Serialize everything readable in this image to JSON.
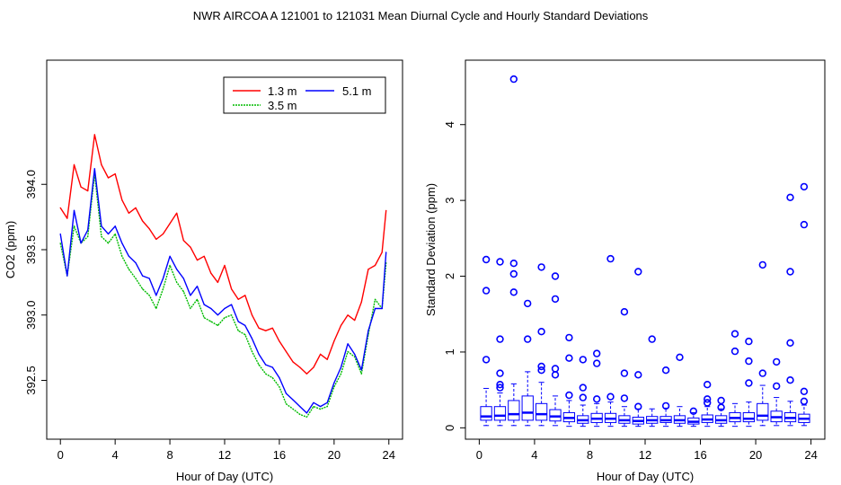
{
  "page_title": "NWR   AIRCOA A   121001 to 121031   Mean Diurnal Cycle and Hourly Standard Deviations",
  "chart_data": [
    {
      "type": "line",
      "xlabel": "Hour of Day (UTC)",
      "ylabel": "CO2 (ppm)",
      "xlim": [
        -1,
        25
      ],
      "ylim": [
        392.05,
        394.95
      ],
      "xticks": [
        "0",
        "4",
        "8",
        "12",
        "16",
        "20",
        "24"
      ],
      "yticks": [
        "392.5",
        "393.0",
        "393.5",
        "394.0"
      ],
      "legend": {
        "placement": "top-right",
        "entries": [
          "1.3 m",
          "5.1 m",
          "3.5 m"
        ]
      },
      "series": [
        {
          "name": "1.3 m",
          "color": "#ff0000",
          "x": [
            0,
            0.5,
            1,
            1.5,
            2,
            2.5,
            3,
            3.5,
            4,
            4.5,
            5,
            5.5,
            6,
            6.5,
            7,
            7.5,
            8,
            8.5,
            9,
            9.5,
            10,
            10.5,
            11,
            11.5,
            12,
            12.5,
            13,
            13.5,
            14,
            14.5,
            15,
            15.5,
            16,
            16.5,
            17,
            17.5,
            18,
            18.5,
            19,
            19.5,
            20,
            20.5,
            21,
            21.5,
            22,
            22.5,
            23,
            23.5,
            23.8
          ],
          "values": [
            393.82,
            393.74,
            394.15,
            393.98,
            393.95,
            394.38,
            394.15,
            394.05,
            394.08,
            393.88,
            393.78,
            393.82,
            393.72,
            393.66,
            393.58,
            393.62,
            393.7,
            393.78,
            393.57,
            393.52,
            393.42,
            393.45,
            393.32,
            393.25,
            393.38,
            393.2,
            393.12,
            393.15,
            393.0,
            392.9,
            392.88,
            392.9,
            392.8,
            392.72,
            392.64,
            392.6,
            392.55,
            392.6,
            392.7,
            392.66,
            392.8,
            392.92,
            393.0,
            392.96,
            393.1,
            393.35,
            393.38,
            393.48,
            393.8
          ]
        },
        {
          "name": "5.1 m",
          "color": "#0000ff",
          "x": [
            0,
            0.5,
            1,
            1.5,
            2,
            2.5,
            3,
            3.5,
            4,
            4.5,
            5,
            5.5,
            6,
            6.5,
            7,
            7.5,
            8,
            8.5,
            9,
            9.5,
            10,
            10.5,
            11,
            11.5,
            12,
            12.5,
            13,
            13.5,
            14,
            14.5,
            15,
            15.5,
            16,
            16.5,
            17,
            17.5,
            18,
            18.5,
            19,
            19.5,
            20,
            20.5,
            21,
            21.5,
            22,
            22.5,
            23,
            23.5,
            23.8
          ],
          "values": [
            393.62,
            393.3,
            393.8,
            393.55,
            393.65,
            394.12,
            393.68,
            393.62,
            393.68,
            393.55,
            393.45,
            393.4,
            393.3,
            393.28,
            393.15,
            393.28,
            393.45,
            393.35,
            393.28,
            393.15,
            393.22,
            393.08,
            393.05,
            393.0,
            393.05,
            393.08,
            392.95,
            392.92,
            392.82,
            392.7,
            392.62,
            392.6,
            392.52,
            392.4,
            392.35,
            392.3,
            392.25,
            392.33,
            392.3,
            392.33,
            392.48,
            392.6,
            392.78,
            392.7,
            392.58,
            392.88,
            393.05,
            393.05,
            393.48
          ]
        },
        {
          "name": "3.5 m",
          "color": "#00bb00",
          "x": [
            0,
            0.5,
            1,
            1.5,
            2,
            2.5,
            3,
            3.5,
            4,
            4.5,
            5,
            5.5,
            6,
            6.5,
            7,
            7.5,
            8,
            8.5,
            9,
            9.5,
            10,
            10.5,
            11,
            11.5,
            12,
            12.5,
            13,
            13.5,
            14,
            14.5,
            15,
            15.5,
            16,
            16.5,
            17,
            17.5,
            18,
            18.5,
            19,
            19.5,
            20,
            20.5,
            21,
            21.5,
            22,
            22.5,
            23,
            23.5,
            23.8
          ],
          "values": [
            393.55,
            393.3,
            393.68,
            393.55,
            393.6,
            394.08,
            393.6,
            393.55,
            393.62,
            393.45,
            393.35,
            393.28,
            393.2,
            393.15,
            393.05,
            393.2,
            393.38,
            393.25,
            393.18,
            393.05,
            393.12,
            392.98,
            392.95,
            392.92,
            392.98,
            393.0,
            392.88,
            392.85,
            392.72,
            392.62,
            392.55,
            392.52,
            392.45,
            392.32,
            392.28,
            392.24,
            392.22,
            392.3,
            392.28,
            392.3,
            392.45,
            392.55,
            392.72,
            392.68,
            392.55,
            392.85,
            393.12,
            393.05,
            393.4
          ]
        }
      ]
    },
    {
      "type": "box",
      "xlabel": "Hour of Day (UTC)",
      "ylabel": "Standard Deviation (ppm)",
      "xlim": [
        -1,
        25
      ],
      "ylim": [
        -0.15,
        4.85
      ],
      "xticks": [
        "0",
        "4",
        "8",
        "12",
        "16",
        "20",
        "24"
      ],
      "yticks": [
        "0",
        "1",
        "2",
        "3",
        "4"
      ],
      "hours": [
        0.5,
        1.5,
        2.5,
        3.5,
        4.5,
        5.5,
        6.5,
        7.5,
        8.5,
        9.5,
        10.5,
        11.5,
        12.5,
        13.5,
        14.5,
        15.5,
        16.5,
        17.5,
        18.5,
        19.5,
        20.5,
        21.5,
        22.5,
        23.5
      ],
      "whisker_low": [
        0.03,
        0.03,
        0.03,
        0.03,
        0.03,
        0.03,
        0.02,
        0.02,
        0.02,
        0.02,
        0.02,
        0.02,
        0.02,
        0.02,
        0.02,
        0.02,
        0.02,
        0.02,
        0.02,
        0.02,
        0.03,
        0.03,
        0.03,
        0.03
      ],
      "q1": [
        0.1,
        0.1,
        0.1,
        0.1,
        0.1,
        0.09,
        0.08,
        0.06,
        0.07,
        0.07,
        0.06,
        0.05,
        0.06,
        0.07,
        0.06,
        0.05,
        0.07,
        0.06,
        0.08,
        0.08,
        0.1,
        0.08,
        0.08,
        0.07
      ],
      "median": [
        0.15,
        0.16,
        0.18,
        0.2,
        0.18,
        0.15,
        0.13,
        0.1,
        0.12,
        0.12,
        0.1,
        0.09,
        0.1,
        0.1,
        0.1,
        0.08,
        0.11,
        0.1,
        0.13,
        0.12,
        0.16,
        0.14,
        0.13,
        0.12
      ],
      "q3": [
        0.28,
        0.28,
        0.36,
        0.42,
        0.32,
        0.24,
        0.2,
        0.16,
        0.19,
        0.19,
        0.16,
        0.14,
        0.15,
        0.15,
        0.16,
        0.13,
        0.17,
        0.16,
        0.2,
        0.2,
        0.32,
        0.22,
        0.2,
        0.18
      ],
      "whisker_high": [
        0.52,
        0.46,
        0.58,
        0.74,
        0.6,
        0.42,
        0.36,
        0.3,
        0.32,
        0.34,
        0.28,
        0.25,
        0.25,
        0.26,
        0.28,
        0.2,
        0.28,
        0.25,
        0.32,
        0.34,
        0.56,
        0.4,
        0.35,
        0.3
      ],
      "outliers": [
        [
          0.5,
          2.22
        ],
        [
          0.5,
          1.81
        ],
        [
          0.5,
          0.9
        ],
        [
          1.5,
          2.19
        ],
        [
          1.5,
          1.17
        ],
        [
          1.5,
          0.72
        ],
        [
          1.5,
          0.57
        ],
        [
          1.5,
          0.53
        ],
        [
          2.5,
          4.6
        ],
        [
          2.5,
          2.17
        ],
        [
          2.5,
          2.03
        ],
        [
          2.5,
          1.79
        ],
        [
          3.5,
          1.64
        ],
        [
          3.5,
          1.17
        ],
        [
          4.5,
          2.12
        ],
        [
          4.5,
          1.27
        ],
        [
          4.5,
          0.81
        ],
        [
          4.5,
          0.76
        ],
        [
          5.5,
          2.0
        ],
        [
          5.5,
          1.7
        ],
        [
          5.5,
          0.78
        ],
        [
          5.5,
          0.7
        ],
        [
          6.5,
          1.19
        ],
        [
          6.5,
          0.92
        ],
        [
          6.5,
          0.43
        ],
        [
          7.5,
          0.9
        ],
        [
          7.5,
          0.53
        ],
        [
          7.5,
          0.4
        ],
        [
          8.5,
          0.98
        ],
        [
          8.5,
          0.85
        ],
        [
          8.5,
          0.38
        ],
        [
          9.5,
          2.23
        ],
        [
          9.5,
          0.41
        ],
        [
          10.5,
          1.53
        ],
        [
          10.5,
          0.72
        ],
        [
          10.5,
          0.39
        ],
        [
          11.5,
          2.06
        ],
        [
          11.5,
          0.7
        ],
        [
          11.5,
          0.28
        ],
        [
          12.5,
          1.17
        ],
        [
          13.5,
          0.76
        ],
        [
          13.5,
          0.29
        ],
        [
          14.5,
          0.93
        ],
        [
          15.5,
          0.22
        ],
        [
          16.5,
          0.57
        ],
        [
          16.5,
          0.38
        ],
        [
          16.5,
          0.33
        ],
        [
          17.5,
          0.36
        ],
        [
          17.5,
          0.27
        ],
        [
          18.5,
          1.24
        ],
        [
          18.5,
          1.01
        ],
        [
          19.5,
          1.14
        ],
        [
          19.5,
          0.88
        ],
        [
          19.5,
          0.59
        ],
        [
          20.5,
          2.15
        ],
        [
          20.5,
          0.72
        ],
        [
          21.5,
          0.87
        ],
        [
          21.5,
          0.55
        ],
        [
          22.5,
          3.04
        ],
        [
          22.5,
          2.06
        ],
        [
          22.5,
          1.12
        ],
        [
          22.5,
          0.63
        ],
        [
          23.5,
          3.18
        ],
        [
          23.5,
          2.68
        ],
        [
          23.5,
          0.48
        ],
        [
          23.5,
          0.35
        ]
      ]
    }
  ]
}
